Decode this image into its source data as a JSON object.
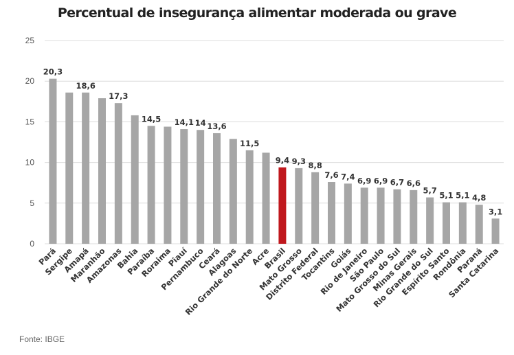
{
  "chart_data": {
    "type": "bar",
    "title": "Percentual de insegurança alimentar moderada ou grave",
    "xlabel": "",
    "ylabel": "",
    "ylim": [
      0,
      25
    ],
    "yticks": [
      0,
      5,
      10,
      15,
      20,
      25
    ],
    "grid": true,
    "legend": "none",
    "categories": [
      "Pará",
      "Sergipe",
      "Amapá",
      "Maranhão",
      "Amazonas",
      "Bahia",
      "Paraíba",
      "Roraima",
      "Piauí",
      "Pernambuco",
      "Ceará",
      "Alagoas",
      "Rio Grande do Norte",
      "Acre",
      "Brasil",
      "Mato Grosso",
      "Distrito Federal",
      "Tocantins",
      "Goiás",
      "Rio de Janeiro",
      "São Paulo",
      "Mato Grosso do Sul",
      "Minas Gerais",
      "Rio Grande do Sul",
      "Espírito Santo",
      "Rondônia",
      "Paraná",
      "Santa Catarina"
    ],
    "values": [
      20.3,
      18.6,
      18.6,
      17.9,
      17.3,
      15.8,
      14.5,
      14.4,
      14.1,
      14.0,
      13.6,
      12.9,
      11.5,
      11.2,
      9.4,
      9.3,
      8.8,
      7.6,
      7.4,
      6.9,
      6.9,
      6.7,
      6.6,
      5.7,
      5.1,
      5.1,
      4.8,
      3.1
    ],
    "data_labels": [
      "20,3",
      "",
      "18,6",
      "",
      "17,3",
      "",
      "14,5",
      "",
      "14,1",
      "14",
      "13,6",
      "",
      "11,5",
      "",
      "9,4",
      "9,3",
      "8,8",
      "7,6",
      "7,4",
      "6,9",
      "6,9",
      "6,7",
      "6,6",
      "5,7",
      "5,1",
      "5,1",
      "4,8",
      "3,1"
    ],
    "highlight_category": "Brasil",
    "colors": {
      "bar": "#a6a6a6",
      "highlight": "#c0181d",
      "grid": "#dcdcdc"
    }
  },
  "source": "Fonte: IBGE"
}
